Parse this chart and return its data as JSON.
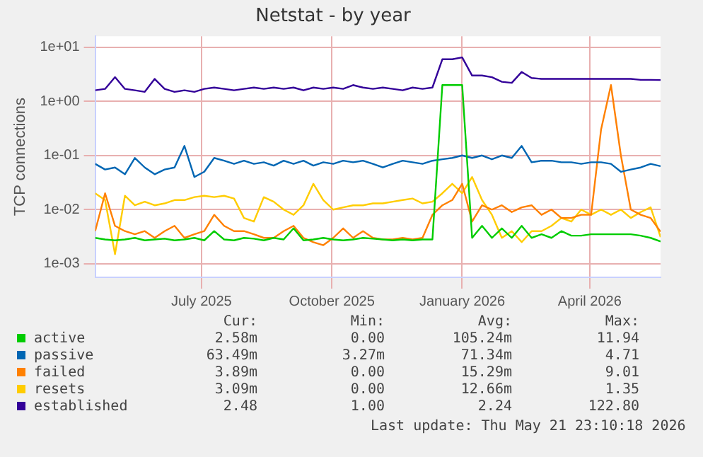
{
  "chart_data": {
    "type": "line",
    "title": "Netstat - by year",
    "ylabel": "TCP connections",
    "x": [
      "2025-04-17",
      "2025-04-24",
      "2025-05-01",
      "2025-05-08",
      "2025-05-15",
      "2025-05-22",
      "2025-05-29",
      "2025-06-05",
      "2025-06-12",
      "2025-06-19",
      "2025-06-26",
      "2025-07-03",
      "2025-07-10",
      "2025-07-17",
      "2025-07-24",
      "2025-07-31",
      "2025-08-07",
      "2025-08-14",
      "2025-08-21",
      "2025-08-28",
      "2025-09-04",
      "2025-09-11",
      "2025-09-18",
      "2025-09-25",
      "2025-10-02",
      "2025-10-09",
      "2025-10-16",
      "2025-10-23",
      "2025-10-30",
      "2025-11-06",
      "2025-11-13",
      "2025-11-20",
      "2025-11-27",
      "2025-12-04",
      "2025-12-11",
      "2025-12-18",
      "2025-12-25",
      "2026-01-01",
      "2026-01-08",
      "2026-01-15",
      "2026-01-22",
      "2026-01-29",
      "2026-02-05",
      "2026-02-12",
      "2026-02-19",
      "2026-02-26",
      "2026-03-05",
      "2026-03-12",
      "2026-03-19",
      "2026-03-26",
      "2026-04-02",
      "2026-04-09",
      "2026-04-16",
      "2026-04-23",
      "2026-04-30",
      "2026-05-07",
      "2026-05-14",
      "2026-05-21"
    ],
    "series": [
      {
        "name": "active",
        "color": "#00cc00",
        "values": [
          0.003,
          0.0028,
          0.0027,
          0.0028,
          0.003,
          0.0027,
          0.0028,
          0.0029,
          0.0027,
          0.0028,
          0.003,
          0.0027,
          0.004,
          0.0028,
          0.0027,
          0.003,
          0.0029,
          0.0027,
          0.003,
          0.0028,
          0.0045,
          0.0027,
          0.0028,
          0.003,
          0.0028,
          0.0027,
          0.0028,
          0.003,
          0.0029,
          0.0028,
          0.0027,
          0.0028,
          0.0027,
          0.0028,
          0.0028,
          2.0,
          2.0,
          2.0,
          0.003,
          0.005,
          0.003,
          0.0045,
          0.003,
          0.005,
          0.003,
          0.0035,
          0.003,
          0.004,
          0.0033,
          0.0033,
          0.0035,
          0.0035,
          0.0035,
          0.0035,
          0.0035,
          0.0033,
          0.003,
          0.00258
        ]
      },
      {
        "name": "passive",
        "color": "#0066b3",
        "values": [
          0.07,
          0.055,
          0.06,
          0.045,
          0.09,
          0.06,
          0.045,
          0.055,
          0.06,
          0.15,
          0.04,
          0.05,
          0.09,
          0.08,
          0.07,
          0.08,
          0.07,
          0.075,
          0.065,
          0.08,
          0.07,
          0.08,
          0.065,
          0.075,
          0.07,
          0.08,
          0.075,
          0.08,
          0.07,
          0.06,
          0.07,
          0.08,
          0.075,
          0.07,
          0.08,
          0.085,
          0.09,
          0.1,
          0.09,
          0.1,
          0.085,
          0.1,
          0.09,
          0.15,
          0.075,
          0.08,
          0.08,
          0.075,
          0.075,
          0.07,
          0.075,
          0.075,
          0.07,
          0.05,
          0.055,
          0.06,
          0.07,
          0.0635
        ]
      },
      {
        "name": "failed",
        "color": "#ff8000",
        "values": [
          0.004,
          0.02,
          0.005,
          0.004,
          0.0035,
          0.004,
          0.003,
          0.004,
          0.005,
          0.003,
          0.0035,
          0.004,
          0.008,
          0.005,
          0.004,
          0.004,
          0.0035,
          0.003,
          0.003,
          0.004,
          0.005,
          0.003,
          0.0025,
          0.0022,
          0.003,
          0.0045,
          0.003,
          0.004,
          0.003,
          0.0028,
          0.0028,
          0.003,
          0.0028,
          0.003,
          0.008,
          0.012,
          0.015,
          0.03,
          0.006,
          0.012,
          0.01,
          0.012,
          0.009,
          0.011,
          0.012,
          0.008,
          0.01,
          0.007,
          0.007,
          0.008,
          0.008,
          0.3,
          2.0,
          0.1,
          0.01,
          0.008,
          0.007,
          0.0039
        ]
      },
      {
        "name": "resets",
        "color": "#ffcc00",
        "values": [
          0.02,
          0.015,
          0.0015,
          0.018,
          0.012,
          0.014,
          0.012,
          0.013,
          0.015,
          0.015,
          0.017,
          0.018,
          0.017,
          0.018,
          0.016,
          0.007,
          0.006,
          0.017,
          0.014,
          0.01,
          0.008,
          0.012,
          0.03,
          0.015,
          0.01,
          0.011,
          0.012,
          0.012,
          0.013,
          0.013,
          0.014,
          0.015,
          0.016,
          0.013,
          0.014,
          0.02,
          0.03,
          0.02,
          0.04,
          0.015,
          0.008,
          0.003,
          0.004,
          0.0025,
          0.004,
          0.004,
          0.005,
          0.007,
          0.006,
          0.01,
          0.008,
          0.01,
          0.008,
          0.01,
          0.007,
          0.009,
          0.011,
          0.0031
        ]
      },
      {
        "name": "established",
        "color": "#330099",
        "values": [
          1.6,
          1.7,
          2.8,
          1.7,
          1.6,
          1.5,
          2.6,
          1.7,
          1.5,
          1.6,
          1.5,
          1.7,
          1.8,
          1.7,
          1.6,
          1.7,
          1.8,
          1.7,
          1.8,
          1.7,
          1.8,
          1.6,
          1.8,
          1.7,
          1.8,
          1.7,
          2.0,
          1.8,
          1.7,
          1.8,
          1.7,
          1.6,
          1.8,
          1.7,
          1.8,
          6.0,
          6.0,
          6.5,
          3.0,
          3.0,
          2.8,
          2.3,
          2.2,
          3.5,
          2.7,
          2.6,
          2.6,
          2.6,
          2.6,
          2.6,
          2.6,
          2.6,
          2.6,
          2.6,
          2.6,
          2.5,
          2.5,
          2.48
        ]
      }
    ],
    "xlim": [
      "2025-04-17",
      "2026-05-21"
    ],
    "xticks": [
      {
        "value": "2025-07-01",
        "label": "July 2025"
      },
      {
        "value": "2025-10-01",
        "label": "October 2025"
      },
      {
        "value": "2026-01-01",
        "label": "January 2026"
      },
      {
        "value": "2026-04-01",
        "label": "April 2026"
      }
    ],
    "ylim": [
      0.00056,
      16
    ],
    "yticks": [
      {
        "value": 0.001,
        "label": "1e-03"
      },
      {
        "value": 0.01,
        "label": "1e-02"
      },
      {
        "value": 0.1,
        "label": "1e-01"
      },
      {
        "value": 1,
        "label": "1e+00"
      },
      {
        "value": 10,
        "label": "1e+01"
      }
    ],
    "log": "y",
    "grid": true,
    "legend": "bottom",
    "marker": "none",
    "line_style": "solid",
    "annotations": [
      "Cur:",
      "Min:",
      "Avg:",
      "Max:",
      "2.58m",
      "0.00",
      "105.24m",
      "11.94",
      "63.49m",
      "3.27m",
      "71.34m",
      "4.71",
      "3.89m",
      "0.00",
      "15.29m",
      "9.01",
      "3.09m",
      "0.00",
      "12.66m",
      "1.35",
      "2.48",
      "1.00",
      "2.24",
      "122.80",
      "Last update: Thu May 21 23:10:18 2026"
    ]
  }
}
